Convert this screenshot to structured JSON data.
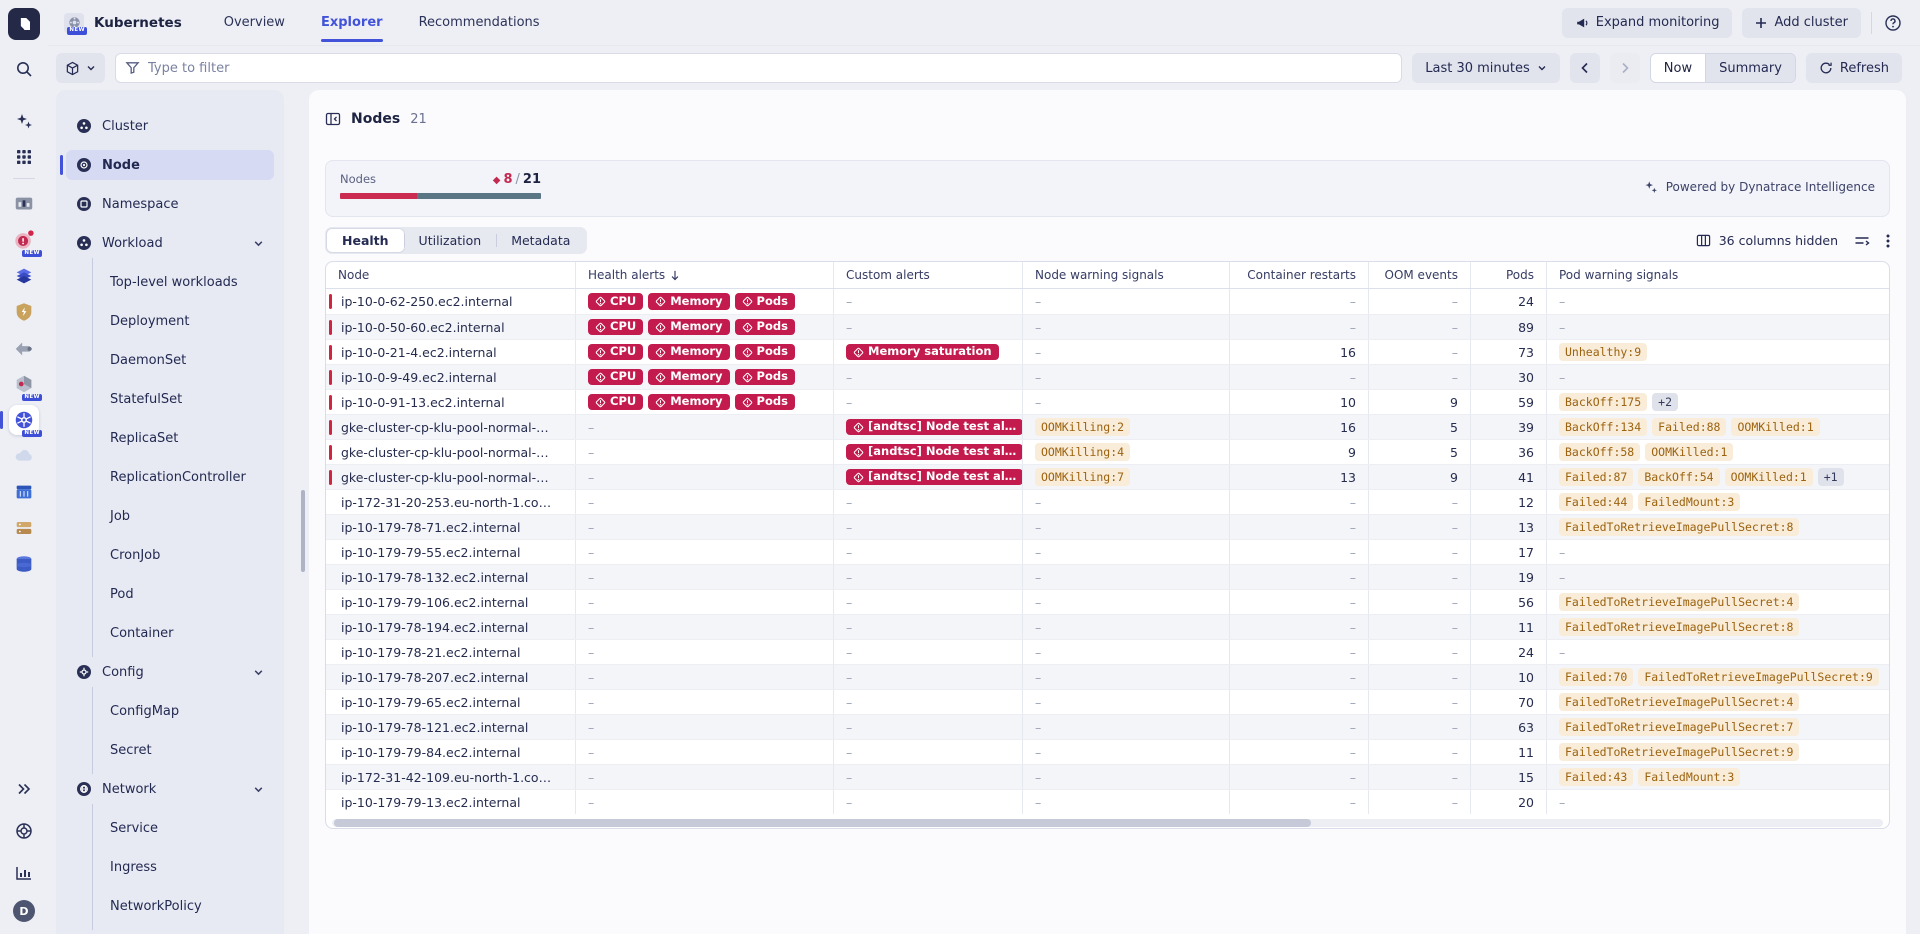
{
  "colors": {
    "accent": "#4353d9",
    "critical": "#c31b4e",
    "warning_bg": "#f9ecd8",
    "warning_text": "#9c6310",
    "healthy_teal": "#5a7584"
  },
  "rail": {
    "new_badge": "NEW",
    "user_initial": "D",
    "icons": [
      "dynatrace-logo",
      "search-icon",
      "sparkles-icon",
      "app-grid-icon",
      "app-icon-dashboards",
      "app-icon-problems",
      "app-icon-clusters",
      "app-icon-security",
      "app-icon-smartscape",
      "app-icon-topology",
      "app-icon-kubernetes",
      "app-icon-clouds",
      "app-icon-containers",
      "app-icon-infrastructure",
      "app-icon-databases",
      "collapse-rail-icon",
      "help-lifebuoy-icon",
      "usage-chart-icon",
      "user-avatar"
    ]
  },
  "topbar": {
    "app_name": "Kubernetes",
    "tabs": [
      {
        "label": "Overview",
        "active": false
      },
      {
        "label": "Explorer",
        "active": true
      },
      {
        "label": "Recommendations",
        "active": false
      }
    ],
    "expand_monitoring": "Expand monitoring",
    "add_cluster": "Add cluster"
  },
  "filterbar": {
    "filter_placeholder": "Type to filter",
    "time_range": "Last 30 minutes",
    "now_label": "Now",
    "summary_label": "Summary",
    "refresh_label": "Refresh"
  },
  "sidebar": {
    "items": [
      {
        "label": "Cluster",
        "icon": "cluster-icon",
        "level": 0
      },
      {
        "label": "Node",
        "icon": "node-icon",
        "level": 0,
        "selected": true
      },
      {
        "label": "Namespace",
        "icon": "namespace-icon",
        "level": 0
      },
      {
        "label": "Workload",
        "icon": "workload-icon",
        "level": 0,
        "expandable": true
      },
      {
        "label": "Top-level workloads",
        "level": 1
      },
      {
        "label": "Deployment",
        "level": 1
      },
      {
        "label": "DaemonSet",
        "level": 1
      },
      {
        "label": "StatefulSet",
        "level": 1
      },
      {
        "label": "ReplicaSet",
        "level": 1
      },
      {
        "label": "ReplicationController",
        "level": 1
      },
      {
        "label": "Job",
        "level": 1
      },
      {
        "label": "CronJob",
        "level": 1
      },
      {
        "label": "Pod",
        "level": 1
      },
      {
        "label": "Container",
        "level": 1
      },
      {
        "label": "Config",
        "icon": "config-icon",
        "level": 0,
        "expandable": true
      },
      {
        "label": "ConfigMap",
        "level": 1
      },
      {
        "label": "Secret",
        "level": 1
      },
      {
        "label": "Network",
        "icon": "network-icon",
        "level": 0,
        "expandable": true
      },
      {
        "label": "Service",
        "level": 1
      },
      {
        "label": "Ingress",
        "level": 1
      },
      {
        "label": "NetworkPolicy",
        "level": 1
      }
    ]
  },
  "main": {
    "title": "Nodes",
    "count": "21",
    "summary": {
      "label": "Nodes",
      "problem_count": "8",
      "ratio_separator": "/",
      "total": "21",
      "powered_by": "Powered by Dynatrace Intelligence"
    },
    "tabs": [
      {
        "label": "Health",
        "active": true
      },
      {
        "label": "Utilization",
        "active": false
      },
      {
        "label": "Metadata",
        "active": false
      }
    ],
    "columns_hidden": "36 columns hidden",
    "table": {
      "empty_cell": "–",
      "headers": [
        "Node",
        "Health alerts",
        "Custom alerts",
        "Node warning signals",
        "Container restarts",
        "OOM events",
        "Pods",
        "Pod warning signals"
      ],
      "sorted_header_index": 1,
      "rows": [
        {
          "node": "ip-10-0-62-250.ec2.internal",
          "marked": true,
          "health": [
            "CPU",
            "Memory",
            "Pods"
          ],
          "custom": [],
          "node_warnings": [],
          "restarts": null,
          "oom": null,
          "pods": "24",
          "pod_warnings": [],
          "more": null
        },
        {
          "node": "ip-10-0-50-60.ec2.internal",
          "marked": true,
          "health": [
            "CPU",
            "Memory",
            "Pods"
          ],
          "custom": [],
          "node_warnings": [],
          "restarts": null,
          "oom": null,
          "pods": "89",
          "pod_warnings": [],
          "more": null
        },
        {
          "node": "ip-10-0-21-4.ec2.internal",
          "marked": true,
          "health": [
            "CPU",
            "Memory",
            "Pods"
          ],
          "custom": [
            "Memory saturation"
          ],
          "node_warnings": [],
          "restarts": "16",
          "oom": null,
          "pods": "73",
          "pod_warnings": [
            "Unhealthy:9"
          ],
          "more": null
        },
        {
          "node": "ip-10-0-9-49.ec2.internal",
          "marked": true,
          "health": [
            "CPU",
            "Memory",
            "Pods"
          ],
          "custom": [],
          "node_warnings": [],
          "restarts": null,
          "oom": null,
          "pods": "30",
          "pod_warnings": [],
          "more": null
        },
        {
          "node": "ip-10-0-91-13.ec2.internal",
          "marked": true,
          "health": [
            "CPU",
            "Memory",
            "Pods"
          ],
          "custom": [],
          "node_warnings": [],
          "restarts": "10",
          "oom": "9",
          "pods": "59",
          "pod_warnings": [
            "BackOff:175"
          ],
          "more": "+2"
        },
        {
          "node": "gke-cluster-cp-klu-pool-normal-…",
          "marked": true,
          "health": [],
          "custom": [
            "[andtsc] Node test al…"
          ],
          "node_warnings": [
            "OOMKilling:2"
          ],
          "restarts": "16",
          "oom": "5",
          "pods": "39",
          "pod_warnings": [
            "BackOff:134",
            "Failed:88",
            "OOMKilled:1"
          ],
          "more": null
        },
        {
          "node": "gke-cluster-cp-klu-pool-normal-…",
          "marked": true,
          "health": [],
          "custom": [
            "[andtsc] Node test al…"
          ],
          "node_warnings": [
            "OOMKilling:4"
          ],
          "restarts": "9",
          "oom": "5",
          "pods": "36",
          "pod_warnings": [
            "BackOff:58",
            "OOMKilled:1"
          ],
          "more": null
        },
        {
          "node": "gke-cluster-cp-klu-pool-normal-…",
          "marked": true,
          "health": [],
          "custom": [
            "[andtsc] Node test al…"
          ],
          "node_warnings": [
            "OOMKilling:7"
          ],
          "restarts": "13",
          "oom": "9",
          "pods": "41",
          "pod_warnings": [
            "Failed:87",
            "BackOff:54",
            "OOMKilled:1"
          ],
          "more": "+1"
        },
        {
          "node": "ip-172-31-20-253.eu-north-1.co…",
          "marked": false,
          "health": [],
          "custom": [],
          "node_warnings": [],
          "restarts": null,
          "oom": null,
          "pods": "12",
          "pod_warnings": [
            "Failed:44",
            "FailedMount:3"
          ],
          "more": null
        },
        {
          "node": "ip-10-179-78-71.ec2.internal",
          "marked": false,
          "health": [],
          "custom": [],
          "node_warnings": [],
          "restarts": null,
          "oom": null,
          "pods": "13",
          "pod_warnings": [
            "FailedToRetrieveImagePullSecret:8"
          ],
          "more": null
        },
        {
          "node": "ip-10-179-79-55.ec2.internal",
          "marked": false,
          "health": [],
          "custom": [],
          "node_warnings": [],
          "restarts": null,
          "oom": null,
          "pods": "17",
          "pod_warnings": [],
          "more": null
        },
        {
          "node": "ip-10-179-78-132.ec2.internal",
          "marked": false,
          "health": [],
          "custom": [],
          "node_warnings": [],
          "restarts": null,
          "oom": null,
          "pods": "19",
          "pod_warnings": [],
          "more": null
        },
        {
          "node": "ip-10-179-79-106.ec2.internal",
          "marked": false,
          "health": [],
          "custom": [],
          "node_warnings": [],
          "restarts": null,
          "oom": null,
          "pods": "56",
          "pod_warnings": [
            "FailedToRetrieveImagePullSecret:4"
          ],
          "more": null
        },
        {
          "node": "ip-10-179-78-194.ec2.internal",
          "marked": false,
          "health": [],
          "custom": [],
          "node_warnings": [],
          "restarts": null,
          "oom": null,
          "pods": "11",
          "pod_warnings": [
            "FailedToRetrieveImagePullSecret:8"
          ],
          "more": null
        },
        {
          "node": "ip-10-179-78-21.ec2.internal",
          "marked": false,
          "health": [],
          "custom": [],
          "node_warnings": [],
          "restarts": null,
          "oom": null,
          "pods": "24",
          "pod_warnings": [],
          "more": null
        },
        {
          "node": "ip-10-179-78-207.ec2.internal",
          "marked": false,
          "health": [],
          "custom": [],
          "node_warnings": [],
          "restarts": null,
          "oom": null,
          "pods": "10",
          "pod_warnings": [
            "Failed:70",
            "FailedToRetrieveImagePullSecret:9"
          ],
          "more": null
        },
        {
          "node": "ip-10-179-79-65.ec2.internal",
          "marked": false,
          "health": [],
          "custom": [],
          "node_warnings": [],
          "restarts": null,
          "oom": null,
          "pods": "70",
          "pod_warnings": [
            "FailedToRetrieveImagePullSecret:4"
          ],
          "more": null
        },
        {
          "node": "ip-10-179-78-121.ec2.internal",
          "marked": false,
          "health": [],
          "custom": [],
          "node_warnings": [],
          "restarts": null,
          "oom": null,
          "pods": "63",
          "pod_warnings": [
            "FailedToRetrieveImagePullSecret:7"
          ],
          "more": null
        },
        {
          "node": "ip-10-179-79-84.ec2.internal",
          "marked": false,
          "health": [],
          "custom": [],
          "node_warnings": [],
          "restarts": null,
          "oom": null,
          "pods": "11",
          "pod_warnings": [
            "FailedToRetrieveImagePullSecret:9"
          ],
          "more": null
        },
        {
          "node": "ip-172-31-42-109.eu-north-1.co…",
          "marked": false,
          "health": [],
          "custom": [],
          "node_warnings": [],
          "restarts": null,
          "oom": null,
          "pods": "15",
          "pod_warnings": [
            "Failed:43",
            "FailedMount:3"
          ],
          "more": null
        },
        {
          "node": "ip-10-179-79-13.ec2.internal",
          "marked": false,
          "health": [],
          "custom": [],
          "node_warnings": [],
          "restarts": null,
          "oom": null,
          "pods": "20",
          "pod_warnings": [],
          "more": null
        }
      ]
    }
  }
}
